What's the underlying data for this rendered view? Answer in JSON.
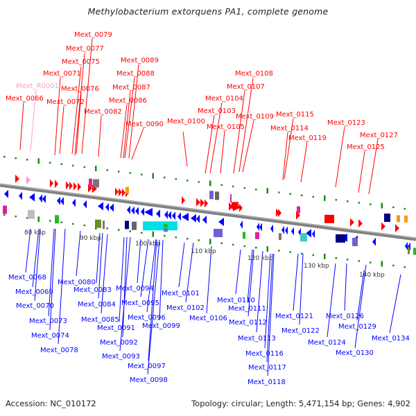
{
  "title": "Methylobacterium extorquens PA1, complete genome",
  "footer": {
    "accession": "Accession: NC_010172",
    "summary": "Topology: circular; Length: 5,471,154 bp; Genes: 4,902"
  },
  "colors": {
    "forward": "#ff0000",
    "reverse": "#0000ff",
    "rna": "#f5a0d0",
    "backbone": "#808080",
    "gc_tick": "#1a8a1a"
  },
  "ticks": [
    {
      "label": "80 kbp"
    },
    {
      "label": "90 kbp"
    },
    {
      "label": "100 kbp"
    },
    {
      "label": "110 kbp"
    },
    {
      "label": "120 kbp"
    },
    {
      "label": "130 kbp"
    },
    {
      "label": "140 kbp"
    }
  ],
  "forward_labels": [
    "Mext_0079",
    "Mext_0077",
    "Mext_0075",
    "Mext_0071",
    "Mext_R0001",
    "Mext_0066",
    "Mext_0076",
    "Mext_0072",
    "Mext_0082",
    "Mext_0089",
    "Mext_0088",
    "Mext_0087",
    "Mext_0086",
    "Mext_0090",
    "Mext_0100",
    "Mext_0108",
    "Mext_0107",
    "Mext_0104",
    "Mext_0103",
    "Mext_0105",
    "Mext_0109",
    "Mext_0115",
    "Mext_0114",
    "Mext_0119",
    "Mext_0123",
    "Mext_0127",
    "Mext_0125"
  ],
  "reverse_labels": [
    "Mext_0068",
    "Mext_0069",
    "Mext_0070",
    "Mext_0073",
    "Mext_0074",
    "Mext_0078",
    "Mext_0080",
    "Mext_0083",
    "Mext_0084",
    "Mext_0085",
    "Mext_0091",
    "Mext_0092",
    "Mext_0093",
    "Mext_0094",
    "Mext_0095",
    "Mext_0096",
    "Mext_0099",
    "Mext_0097",
    "Mext_0098",
    "Mext_0101",
    "Mext_0102",
    "Mext_0106",
    "Mext_0110",
    "Mext_0111",
    "Mext_0112",
    "Mext_0113",
    "Mext_0116",
    "Mext_0117",
    "Mext_0118",
    "Mext_0121",
    "Mext_0122",
    "Mext_0124",
    "Mext_0126",
    "Mext_0129",
    "Mext_0130",
    "Mext_0134"
  ]
}
